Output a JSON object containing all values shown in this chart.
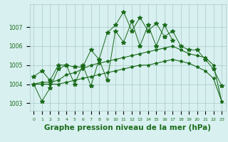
{
  "title": "Graphe pression niveau de la mer (hPa)",
  "hours": [
    0,
    1,
    2,
    3,
    4,
    5,
    6,
    7,
    8,
    9,
    10,
    11,
    12,
    13,
    14,
    15,
    16,
    17,
    18,
    19,
    20,
    21,
    22,
    23
  ],
  "line_jagged_upper": [
    1004.4,
    1004.7,
    1004.2,
    1005.0,
    1005.0,
    1004.9,
    1004.9,
    1005.8,
    1005.3,
    1006.7,
    1007.1,
    1007.8,
    1006.8,
    1007.5,
    1006.8,
    1007.2,
    1006.5,
    1006.8,
    1006.0,
    1005.8,
    1005.8,
    1005.3,
    1004.8,
    1003.9
  ],
  "line_jagged_lower": [
    1004.0,
    1003.1,
    1003.8,
    1004.8,
    1005.0,
    1004.0,
    1005.0,
    1003.9,
    1005.3,
    1004.2,
    1006.8,
    1006.2,
    1007.3,
    1006.0,
    1007.1,
    1006.0,
    1007.1,
    1006.3,
    null,
    null,
    null,
    null,
    null,
    null
  ],
  "line_smooth_high": [
    1004.0,
    1004.1,
    1004.1,
    1004.2,
    1004.5,
    1004.6,
    1004.8,
    1005.0,
    1005.1,
    1005.2,
    1005.3,
    1005.4,
    1005.5,
    1005.6,
    1005.7,
    1005.8,
    1005.9,
    1006.0,
    1005.8,
    1005.6,
    1005.5,
    1005.4,
    1005.0,
    1003.1
  ],
  "line_smooth_low": [
    1004.0,
    1004.0,
    1004.0,
    1004.0,
    1004.1,
    1004.2,
    1004.3,
    1004.4,
    1004.5,
    1004.6,
    1004.7,
    1004.8,
    1004.9,
    1005.0,
    1005.0,
    1005.1,
    1005.2,
    1005.3,
    1005.2,
    1005.1,
    1004.9,
    1004.7,
    1004.3,
    1003.1
  ],
  "ylim": [
    1002.6,
    1008.2
  ],
  "yticks": [
    1003,
    1004,
    1005,
    1006,
    1007
  ],
  "bg_color": "#d8f0f0",
  "line_color": "#1a6b1a",
  "grid_color": "#a8c8c8",
  "title_fontsize": 7.5,
  "marker": "*",
  "marker_size_large": 4,
  "marker_size_small": 3
}
